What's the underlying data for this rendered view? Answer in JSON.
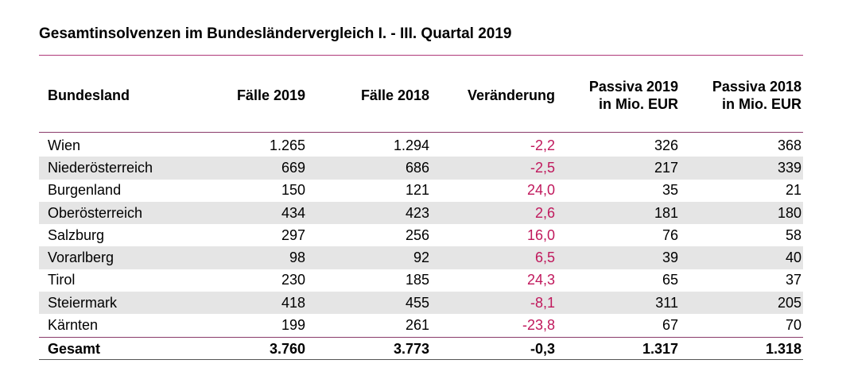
{
  "title": "Gesamtinsolvenzen im Bundesländervergleich I. - III. Quartal 2019",
  "header": {
    "bundesland": "Bundesland",
    "faelle2019": "Fälle 2019",
    "faelle2018": "Fälle 2018",
    "veraenderung": "Veränderung",
    "passiva2019_line1": "Passiva 2019",
    "passiva2019_line2": "in Mio. EUR",
    "passiva2018_line1": "Passiva 2018",
    "passiva2018_line2": "in Mio. EUR"
  },
  "rows": [
    {
      "name": "Wien",
      "f2019": "1.265",
      "f2018": "1.294",
      "change": "-2,2",
      "p2019": "326",
      "p2018": "368"
    },
    {
      "name": "Niederösterreich",
      "f2019": "669",
      "f2018": "686",
      "change": "-2,5",
      "p2019": "217",
      "p2018": "339"
    },
    {
      "name": "Burgenland",
      "f2019": "150",
      "f2018": "121",
      "change": "24,0",
      "p2019": "35",
      "p2018": "21"
    },
    {
      "name": "Oberösterreich",
      "f2019": "434",
      "f2018": "423",
      "change": "2,6",
      "p2019": "181",
      "p2018": "180"
    },
    {
      "name": "Salzburg",
      "f2019": "297",
      "f2018": "256",
      "change": "16,0",
      "p2019": "76",
      "p2018": "58"
    },
    {
      "name": "Vorarlberg",
      "f2019": "98",
      "f2018": "92",
      "change": "6,5",
      "p2019": "39",
      "p2018": "40"
    },
    {
      "name": "Tirol",
      "f2019": "230",
      "f2018": "185",
      "change": "24,3",
      "p2019": "65",
      "p2018": "37"
    },
    {
      "name": "Steiermark",
      "f2019": "418",
      "f2018": "455",
      "change": "-8,1",
      "p2019": "311",
      "p2018": "205"
    },
    {
      "name": "Kärnten",
      "f2019": "199",
      "f2018": "261",
      "change": "-23,8",
      "p2019": "67",
      "p2018": "70"
    }
  ],
  "total": {
    "name": "Gesamt",
    "f2019": "3.760",
    "f2018": "3.773",
    "change": "-0,3",
    "p2019": "1.317",
    "p2018": "1.318"
  },
  "colors": {
    "accent": "#c0185c",
    "rule": "#b0387a",
    "row_shade": "#e5e5e5"
  }
}
